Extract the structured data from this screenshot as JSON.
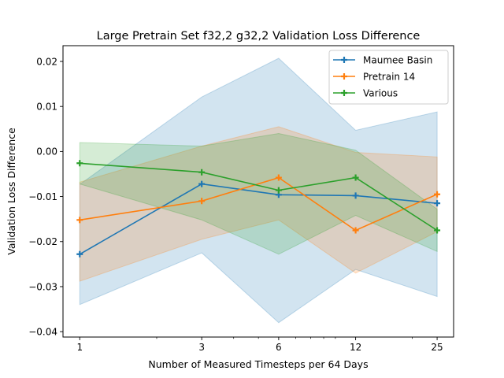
{
  "chart_data": {
    "type": "line",
    "title": "Large Pretrain Set f32,2 g32,2 Validation Loss Difference",
    "xlabel": "Number of Measured Timesteps per 64 Days",
    "ylabel": "Validation Loss Difference",
    "x_scale": "log",
    "x": [
      1,
      3,
      6,
      12,
      25
    ],
    "x_tick_labels": [
      "1",
      "3",
      "6",
      "12",
      "25"
    ],
    "xlim": [
      0.86,
      29
    ],
    "ylim": [
      -0.0412,
      0.0235
    ],
    "y_ticks": [
      0.02,
      0.01,
      0.0,
      -0.01,
      -0.02,
      -0.03,
      -0.04
    ],
    "y_tick_labels": [
      "0.02",
      "0.01",
      "0.00",
      "−0.01",
      "−0.02",
      "−0.03",
      "−0.04"
    ],
    "grid": false,
    "legend_position": "top-right",
    "series": [
      {
        "name": "Maumee Basin",
        "color": "#1f77b4",
        "marker": "plus",
        "values": [
          -0.0228,
          -0.0072,
          -0.0096,
          -0.0098,
          -0.0115
        ],
        "band_upper": [
          -0.0073,
          0.0121,
          0.0207,
          0.0047,
          0.0088
        ],
        "band_lower": [
          -0.034,
          -0.0225,
          -0.038,
          -0.0262,
          -0.0322
        ]
      },
      {
        "name": "Pretrain 14",
        "color": "#ff7f0e",
        "marker": "plus",
        "values": [
          -0.0152,
          -0.011,
          -0.0058,
          -0.0175,
          -0.0095
        ],
        "band_upper": [
          -0.0068,
          0.0012,
          0.0055,
          -0.0002,
          -0.0012
        ],
        "band_lower": [
          -0.0288,
          -0.0195,
          -0.0152,
          -0.027,
          -0.0178
        ]
      },
      {
        "name": "Various",
        "color": "#2ca02c",
        "marker": "plus",
        "values": [
          -0.0026,
          -0.0046,
          -0.0086,
          -0.0058,
          -0.0175
        ],
        "band_upper": [
          0.002,
          0.0012,
          0.004,
          0.0003,
          -0.0128
        ],
        "band_lower": [
          -0.0072,
          -0.0152,
          -0.0228,
          -0.0142,
          -0.0222
        ]
      }
    ]
  }
}
